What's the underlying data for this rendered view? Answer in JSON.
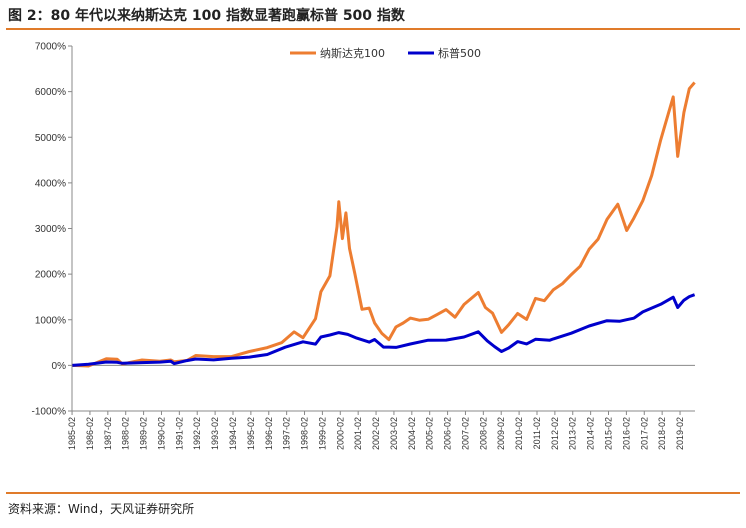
{
  "title": "图 2：80 年代以来纳斯达克 100 指数显著跑赢标普 500 指数",
  "source": "资料来源：Wind，天风证券研究所",
  "colors": {
    "accent": "#e07b2a",
    "nasdaq": "#ed7d31",
    "sp500": "#0000cc"
  },
  "chart_data": {
    "type": "line",
    "title": "",
    "xlabel": "",
    "ylabel": "",
    "ylim": [
      -1000,
      7000
    ],
    "yticks": [
      -1000,
      0,
      1000,
      2000,
      3000,
      4000,
      5000,
      6000,
      7000
    ],
    "ytick_labels": [
      "-1000%",
      "0%",
      "1000%",
      "2000%",
      "3000%",
      "4000%",
      "5000%",
      "6000%",
      "7000%"
    ],
    "xlim": [
      1985.08,
      2019.92
    ],
    "xtick_labels": [
      "1985-02",
      "1986-02",
      "1987-02",
      "1988-02",
      "1989-02",
      "1990-02",
      "1991-02",
      "1992-02",
      "1993-02",
      "1994-02",
      "1995-02",
      "1996-02",
      "1997-02",
      "1998-02",
      "1999-02",
      "2000-02",
      "2001-02",
      "2002-02",
      "2003-02",
      "2004-02",
      "2005-02",
      "2006-02",
      "2007-02",
      "2008-02",
      "2009-02",
      "2010-02",
      "2011-02",
      "2012-02",
      "2013-02",
      "2014-02",
      "2015-02",
      "2016-02",
      "2017-02",
      "2018-02",
      "2019-02"
    ],
    "legend_position": "top-center",
    "grid": false,
    "series": [
      {
        "name": "纳斯达克100",
        "color": "#ed7d31",
        "x": [
          1985.1,
          1986.0,
          1987.0,
          1987.6,
          1987.9,
          1989.0,
          1990.0,
          1990.6,
          1990.8,
          1991.5,
          1992.0,
          1993.0,
          1994.0,
          1995.0,
          1996.0,
          1996.8,
          1997.5,
          1998.0,
          1998.7,
          1999.0,
          1999.5,
          1999.9,
          2000.0,
          2000.2,
          2000.4,
          2000.6,
          2000.9,
          2001.3,
          2001.7,
          2002.0,
          2002.4,
          2002.8,
          2003.2,
          2003.6,
          2004.0,
          2004.5,
          2005.0,
          2005.5,
          2006.0,
          2006.5,
          2007.0,
          2007.8,
          2008.2,
          2008.6,
          2009.1,
          2009.5,
          2010.0,
          2010.5,
          2011.0,
          2011.5,
          2012.0,
          2012.5,
          2013.0,
          2013.5,
          2014.0,
          2014.5,
          2015.0,
          2015.6,
          2016.1,
          2016.5,
          2017.0,
          2017.5,
          2018.0,
          2018.7,
          2018.95,
          2019.3,
          2019.6,
          2019.9
        ],
        "y": [
          0,
          20,
          100,
          160,
          40,
          80,
          130,
          100,
          60,
          150,
          180,
          200,
          220,
          260,
          420,
          500,
          700,
          650,
          1000,
          1600,
          2000,
          3000,
          3600,
          2800,
          3300,
          2600,
          2000,
          1200,
          1300,
          900,
          700,
          600,
          800,
          950,
          1050,
          950,
          1050,
          1100,
          1200,
          1100,
          1300,
          1600,
          1300,
          1100,
          750,
          900,
          1100,
          1050,
          1450,
          1400,
          1700,
          1750,
          2000,
          2200,
          2500,
          2800,
          3200,
          3500,
          3000,
          3200,
          3600,
          4200,
          4900,
          5900,
          4600,
          5500,
          6100,
          6200
        ]
      },
      {
        "name": "标普500",
        "color": "#0000cc",
        "x": [
          1985.1,
          1986.0,
          1987.0,
          1987.6,
          1987.9,
          1989.0,
          1990.0,
          1990.6,
          1990.8,
          1991.5,
          1992.0,
          1993.0,
          1994.0,
          1995.0,
          1996.0,
          1997.0,
          1998.0,
          1998.7,
          1999.0,
          1999.5,
          2000.0,
          2000.5,
          2001.0,
          2001.7,
          2002.0,
          2002.5,
          2002.8,
          2003.2,
          2004.0,
          2005.0,
          2006.0,
          2007.0,
          2007.8,
          2008.3,
          2008.7,
          2009.1,
          2009.5,
          2010.0,
          2010.5,
          2011.0,
          2011.8,
          2012.0,
          2013.0,
          2014.0,
          2015.0,
          2015.7,
          2016.1,
          2016.5,
          2017.0,
          2018.0,
          2018.7,
          2018.95,
          2019.3,
          2019.6,
          2019.9
        ],
        "y": [
          0,
          20,
          60,
          90,
          30,
          60,
          90,
          70,
          50,
          110,
          120,
          140,
          150,
          170,
          260,
          380,
          520,
          480,
          600,
          680,
          720,
          660,
          620,
          500,
          560,
          420,
          380,
          400,
          480,
          530,
          570,
          620,
          720,
          560,
          400,
          300,
          400,
          500,
          480,
          580,
          530,
          600,
          700,
          850,
          1000,
          950,
          1000,
          1050,
          1150,
          1350,
          1500,
          1250,
          1450,
          1500,
          1550
        ]
      }
    ]
  }
}
